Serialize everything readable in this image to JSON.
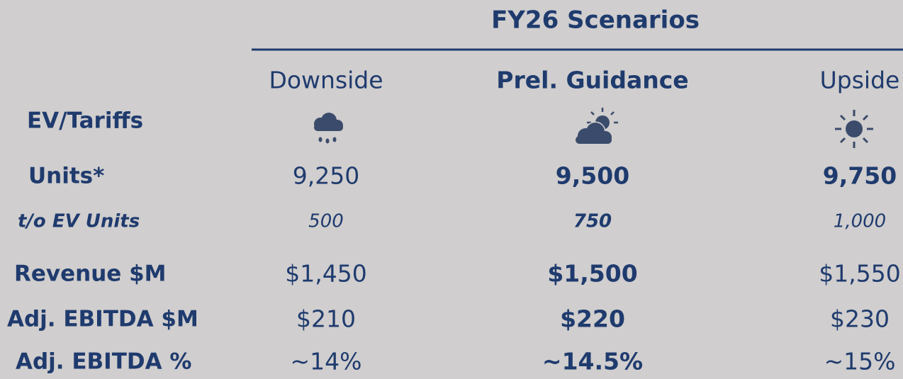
{
  "table": {
    "title": "FY26 Scenarios",
    "columns": [
      "Downside",
      "Prel. Guidance",
      "Upside"
    ],
    "condition_label": "EV/Tariffs",
    "rows": [
      {
        "label": "Units*",
        "cells": [
          "9,250",
          "9,500",
          "9,750"
        ]
      },
      {
        "label": "t/o EV Units",
        "cells": [
          "500",
          "750",
          "1,000"
        ]
      },
      {
        "label": "Revenue $M",
        "cells": [
          "$1,450",
          "$1,500",
          "$1,550"
        ]
      },
      {
        "label": "Adj. EBITDA $M",
        "cells": [
          "$210",
          "$220",
          "$230"
        ]
      },
      {
        "label": "Adj. EBITDA %",
        "cells": [
          "~14%",
          "~14.5%",
          "~15%"
        ]
      }
    ]
  }
}
